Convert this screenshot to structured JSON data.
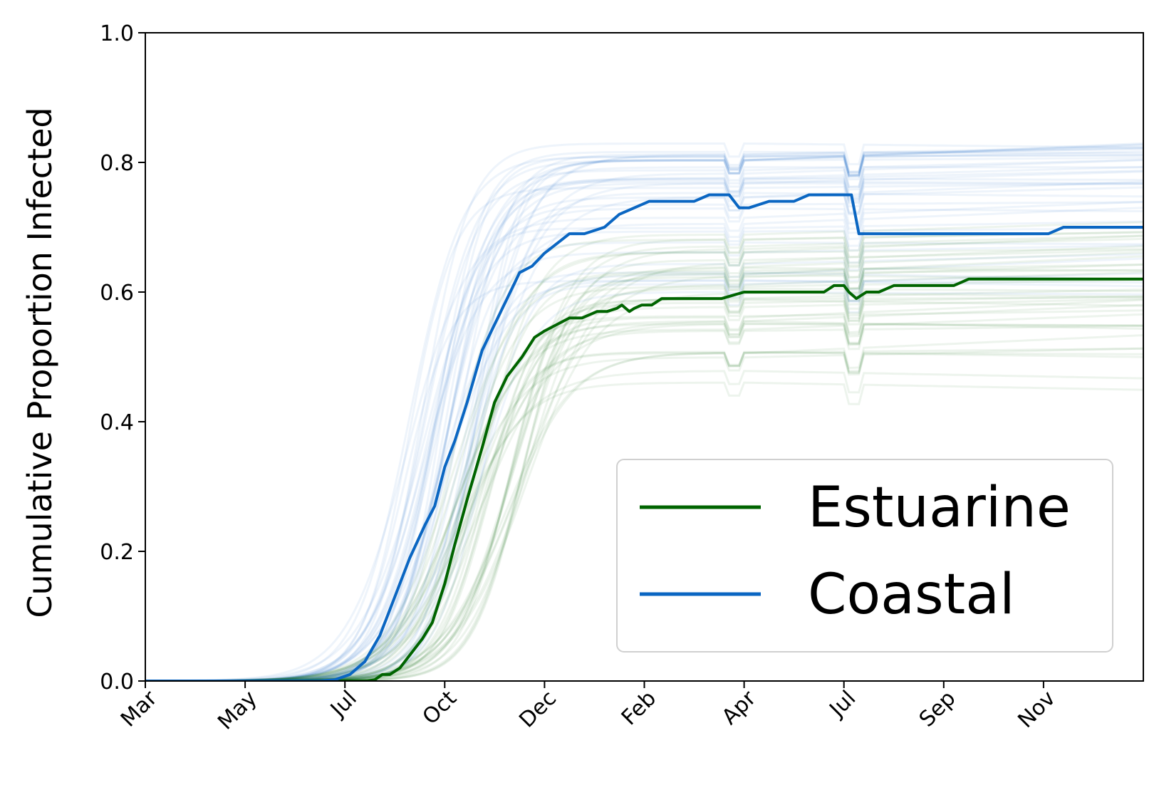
{
  "chart_data": {
    "type": "line",
    "title": "",
    "xlabel": "",
    "ylabel": "Cumulative Proportion Infected",
    "xlim": [
      0,
      20
    ],
    "ylim": [
      0,
      1.0
    ],
    "grid": false,
    "legend_position": "lower-right",
    "x_ticks": [
      {
        "x": 0,
        "label": "Mar"
      },
      {
        "x": 2,
        "label": "May"
      },
      {
        "x": 4,
        "label": "Jul"
      },
      {
        "x": 6,
        "label": "Oct"
      },
      {
        "x": 8,
        "label": "Dec"
      },
      {
        "x": 10,
        "label": "Feb"
      },
      {
        "x": 12,
        "label": "Apr"
      },
      {
        "x": 14,
        "label": "Jul"
      },
      {
        "x": 16,
        "label": "Sep"
      },
      {
        "x": 18,
        "label": "Nov"
      }
    ],
    "y_ticks": [
      {
        "y": 0.0,
        "label": "0.0"
      },
      {
        "y": 0.2,
        "label": "0.2"
      },
      {
        "y": 0.4,
        "label": "0.4"
      },
      {
        "y": 0.6,
        "label": "0.6"
      },
      {
        "y": 0.8,
        "label": "0.8"
      },
      {
        "y": 1.0,
        "label": "1.0"
      }
    ],
    "series": [
      {
        "name": "Estuarine",
        "color": "#006400",
        "x": [
          0,
          3.8,
          4.45,
          4.6,
          4.75,
          4.9,
          5.1,
          5.3,
          5.55,
          5.75,
          6.0,
          6.2,
          6.45,
          6.75,
          7.0,
          7.25,
          7.55,
          7.8,
          8.0,
          8.25,
          8.5,
          8.75,
          9.05,
          9.25,
          9.45,
          9.55,
          9.7,
          9.8,
          9.95,
          10.15,
          10.35,
          10.6,
          11.0,
          11.35,
          11.55,
          12.0,
          12.5,
          13.0,
          13.6,
          13.8,
          14.0,
          14.1,
          14.25,
          14.45,
          14.7,
          15.0,
          16.2,
          16.5,
          17.0,
          18.0,
          20.0
        ],
        "y": [
          0,
          0,
          0,
          0.002,
          0.01,
          0.01,
          0.02,
          0.04,
          0.065,
          0.09,
          0.15,
          0.21,
          0.28,
          0.36,
          0.43,
          0.47,
          0.5,
          0.53,
          0.54,
          0.55,
          0.56,
          0.56,
          0.57,
          0.57,
          0.575,
          0.58,
          0.57,
          0.575,
          0.58,
          0.58,
          0.59,
          0.59,
          0.59,
          0.59,
          0.59,
          0.6,
          0.6,
          0.6,
          0.6,
          0.61,
          0.61,
          0.6,
          0.59,
          0.6,
          0.6,
          0.61,
          0.61,
          0.62,
          0.62,
          0.62,
          0.62
        ]
      },
      {
        "name": "Coastal",
        "color": "#0a66c2",
        "x": [
          0,
          3.5,
          3.8,
          4.1,
          4.4,
          4.7,
          5.0,
          5.3,
          5.6,
          5.8,
          6.0,
          6.2,
          6.45,
          6.75,
          7.0,
          7.25,
          7.5,
          7.75,
          8.0,
          8.25,
          8.5,
          8.8,
          9.2,
          9.5,
          9.8,
          10.1,
          10.5,
          10.8,
          11.0,
          11.3,
          11.55,
          11.7,
          11.9,
          12.1,
          12.5,
          12.8,
          13.0,
          13.3,
          14.0,
          14.15,
          14.3,
          14.6,
          15.0,
          16.0,
          17.0,
          17.5,
          18.1,
          18.4,
          19.0,
          20.0
        ],
        "y": [
          0,
          0,
          0.002,
          0.01,
          0.03,
          0.07,
          0.13,
          0.19,
          0.24,
          0.27,
          0.33,
          0.37,
          0.43,
          0.51,
          0.55,
          0.59,
          0.63,
          0.64,
          0.66,
          0.675,
          0.69,
          0.69,
          0.7,
          0.72,
          0.73,
          0.74,
          0.74,
          0.74,
          0.74,
          0.75,
          0.75,
          0.75,
          0.73,
          0.73,
          0.74,
          0.74,
          0.74,
          0.75,
          0.75,
          0.75,
          0.69,
          0.69,
          0.69,
          0.69,
          0.69,
          0.69,
          0.69,
          0.7,
          0.7,
          0.7
        ]
      }
    ]
  }
}
